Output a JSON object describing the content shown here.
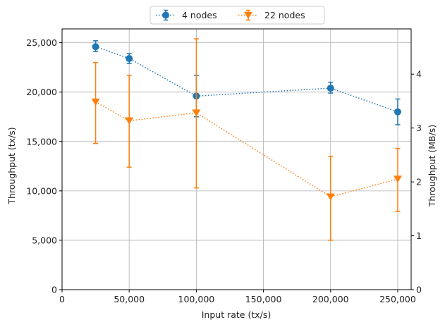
{
  "chart_data": {
    "type": "line",
    "xlabel": "Input rate (tx/s)",
    "ylabel": "Throughput (tx/s)",
    "ylabel_right": "Throughput (MB/s)",
    "xlim": [
      0,
      260000
    ],
    "ylim": [
      0,
      26400
    ],
    "ylim_right": [
      0,
      4.84
    ],
    "x_ticks": [
      0,
      50000,
      100000,
      150000,
      200000,
      250000
    ],
    "x_tick_labels": [
      "0",
      "50,000",
      "100,000",
      "150,000",
      "200,000",
      "250,000"
    ],
    "y_ticks": [
      0,
      5000,
      10000,
      15000,
      20000,
      25000
    ],
    "y_tick_labels": [
      "0",
      "5,000",
      "10,000",
      "15,000",
      "20,000",
      "25,000"
    ],
    "y_right_ticks": [
      0,
      1,
      2,
      3,
      4
    ],
    "y_right_tick_labels": [
      "0",
      "1",
      "2",
      "3",
      "4"
    ],
    "grid": true,
    "legend_position": "top-center",
    "series": [
      {
        "name": "4 nodes",
        "color": "#1f77b4",
        "marker": "circle",
        "line_style": "dotted",
        "x": [
          25000,
          50000,
          100000,
          200000,
          250000
        ],
        "y": [
          24600,
          23400,
          19600,
          20400,
          18000
        ],
        "err_low": [
          24100,
          22900,
          17500,
          19900,
          16700
        ],
        "err_high": [
          25200,
          23900,
          21700,
          21000,
          19300
        ]
      },
      {
        "name": "22 nodes",
        "color": "#ff7f0e",
        "marker": "triangle-down",
        "line_style": "dotted",
        "x": [
          25000,
          50000,
          100000,
          200000,
          250000
        ],
        "y": [
          19000,
          17100,
          17900,
          9400,
          11200
        ],
        "err_low": [
          14800,
          12400,
          10300,
          5000,
          7900
        ],
        "err_high": [
          23000,
          21700,
          25400,
          13500,
          14300
        ]
      }
    ]
  }
}
